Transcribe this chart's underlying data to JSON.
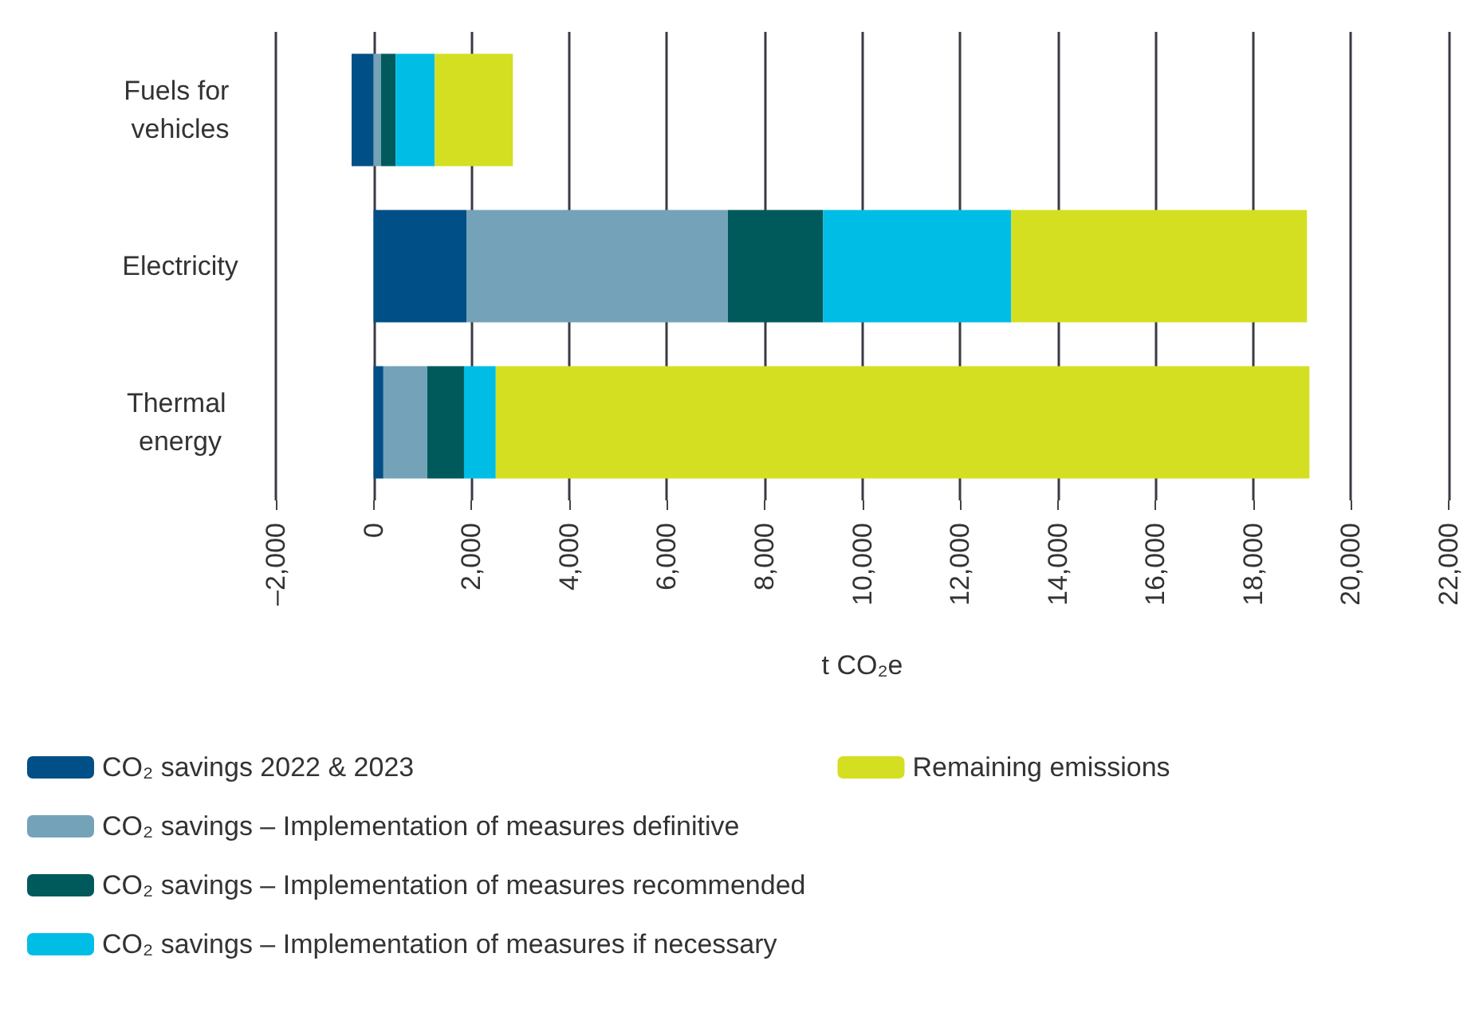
{
  "chart_data": {
    "type": "bar",
    "orientation": "horizontal",
    "stacked": true,
    "categories": [
      "Fuels for vehicles",
      "Electricity",
      "Thermal energy"
    ],
    "xlabel": "t CO₂e",
    "series": [
      {
        "name": "CO₂ savings 2022 & 2023",
        "color": "#004f86",
        "values": [
          -450,
          1900,
          200
        ]
      },
      {
        "name": "CO₂ savings – Implementation of measures definitive",
        "color": "#74a2b9",
        "values": [
          150,
          5350,
          900
        ]
      },
      {
        "name": "CO₂ savings – Implementation of measures recommended",
        "color": "#005a5c",
        "values": [
          300,
          1950,
          750
        ]
      },
      {
        "name": "CO₂ savings – Implementation of measures if necessary",
        "color": "#00bde6",
        "values": [
          800,
          3850,
          650
        ]
      },
      {
        "name": "Remaining emissions",
        "color": "#d4df22",
        "values": [
          1600,
          6050,
          16650
        ]
      }
    ],
    "xlim": [
      -2000,
      22000
    ],
    "xticks": [
      {
        "value": -2000,
        "label": "–2,000"
      },
      0,
      {
        "value": 2000,
        "label": "2,000"
      },
      {
        "value": 4000,
        "label": "4,000"
      },
      {
        "value": 6000,
        "label": "6,000"
      },
      {
        "value": 8000,
        "label": "8,000"
      },
      {
        "value": 10000,
        "label": "10,000"
      },
      {
        "value": 12000,
        "label": "12,000"
      },
      {
        "value": 14000,
        "label": "14,000"
      },
      {
        "value": 16000,
        "label": "16,000"
      },
      {
        "value": 18000,
        "label": "18,000"
      },
      {
        "value": 20000,
        "label": "20,000"
      },
      {
        "value": 22000,
        "label": "22,000"
      }
    ],
    "grid": "x",
    "legend": "bottom left"
  }
}
